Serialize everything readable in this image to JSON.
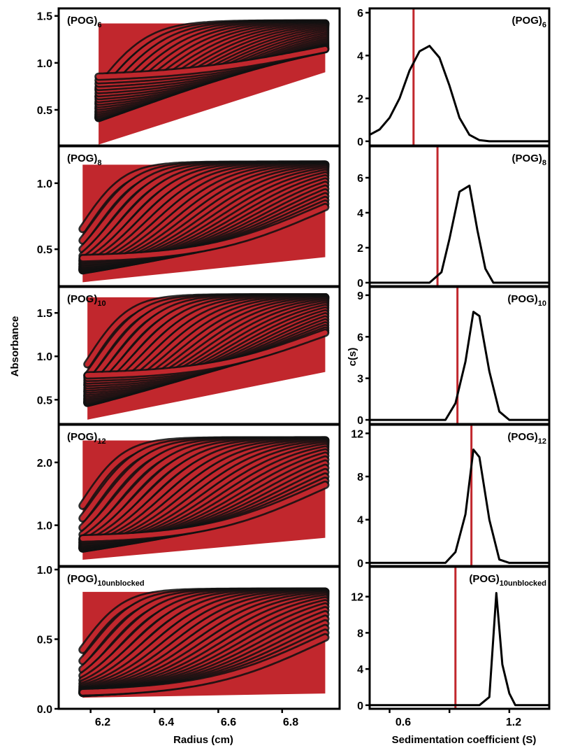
{
  "figure": {
    "left_column": {
      "ylabel": "Absorbance",
      "xlabel": "Radius (cm)",
      "x_ticks": [
        "6.2",
        "6.4",
        "6.6",
        "6.8"
      ]
    },
    "right_column": {
      "ylabel": "c(s)",
      "xlabel": "Sedimentation coefficient (S)",
      "x_ticks": [
        "0.6",
        "1.2"
      ]
    }
  },
  "chart_data": [
    {
      "type": "scatter",
      "panel": "left",
      "row": 0,
      "label": "(POG)",
      "label_sub": "6",
      "xlabel": "Radius (cm)",
      "ylabel": "Absorbance",
      "xlim": [
        6.1,
        6.98
      ],
      "ylim": [
        0.12,
        1.58
      ],
      "yticks": [
        0.5,
        1.0,
        1.5
      ],
      "ytick_labels": [
        "0.5",
        "1.0",
        "1.5"
      ],
      "xticks": [
        6.2,
        6.4,
        6.6,
        6.8
      ],
      "meniscus": 6.225,
      "bottom": 6.935,
      "plateau": 1.42,
      "base": 0.13,
      "base_end": 0.9,
      "n_scans": 28,
      "spread": 0.06,
      "colors": {
        "fit": "#c1272d",
        "data": "#111111"
      }
    },
    {
      "type": "scatter",
      "panel": "left",
      "row": 1,
      "label": "(POG)",
      "label_sub": "8",
      "xlabel": "Radius (cm)",
      "ylabel": "Absorbance",
      "xlim": [
        6.1,
        6.98
      ],
      "ylim": [
        0.22,
        1.28
      ],
      "yticks": [
        0.5,
        1.0
      ],
      "ytick_labels": [
        "0.5",
        "1.0"
      ],
      "xticks": [
        6.2,
        6.4,
        6.6,
        6.8
      ],
      "meniscus": 6.175,
      "bottom": 6.935,
      "plateau": 1.14,
      "base": 0.25,
      "base_end": 0.44,
      "n_scans": 26,
      "spread": 0.045,
      "colors": {
        "fit": "#c1272d",
        "data": "#111111"
      }
    },
    {
      "type": "scatter",
      "panel": "left",
      "row": 2,
      "label": "(POG)",
      "label_sub": "10",
      "xlabel": "Radius (cm)",
      "ylabel": "Absorbance",
      "xlim": [
        6.1,
        6.98
      ],
      "ylim": [
        0.22,
        1.8
      ],
      "yticks": [
        0.5,
        1.0,
        1.5
      ],
      "ytick_labels": [
        "0.5",
        "1.0",
        "1.5"
      ],
      "xticks": [
        6.2,
        6.4,
        6.6,
        6.8
      ],
      "meniscus": 6.19,
      "bottom": 6.935,
      "plateau": 1.68,
      "base": 0.27,
      "base_end": 0.82,
      "n_scans": 26,
      "spread": 0.045,
      "colors": {
        "fit": "#c1272d",
        "data": "#111111"
      }
    },
    {
      "type": "scatter",
      "panel": "left",
      "row": 3,
      "label": "(POG)",
      "label_sub": "12",
      "xlabel": "Radius (cm)",
      "ylabel": "Absorbance",
      "xlim": [
        6.1,
        6.98
      ],
      "ylim": [
        0.35,
        2.6
      ],
      "yticks": [
        1.0,
        2.0
      ],
      "ytick_labels": [
        "1.0",
        "2.0"
      ],
      "xticks": [
        6.2,
        6.4,
        6.6,
        6.8
      ],
      "meniscus": 6.175,
      "bottom": 6.935,
      "plateau": 2.35,
      "base": 0.45,
      "base_end": 0.8,
      "n_scans": 24,
      "spread": 0.045,
      "colors": {
        "fit": "#c1272d",
        "data": "#111111"
      }
    },
    {
      "type": "scatter",
      "panel": "left",
      "row": 4,
      "label": "(POG)",
      "label_sub": "10unblocked",
      "xlabel": "Radius (cm)",
      "ylabel": "Absorbance",
      "xlim": [
        6.1,
        6.98
      ],
      "ylim": [
        0.0,
        1.02
      ],
      "yticks": [
        0.0,
        0.5,
        1.0
      ],
      "ytick_labels": [
        "0.0",
        "0.5",
        "1.0"
      ],
      "xticks": [
        6.2,
        6.4,
        6.6,
        6.8
      ],
      "meniscus": 6.175,
      "bottom": 6.935,
      "plateau": 0.84,
      "base": 0.08,
      "base_end": 0.11,
      "n_scans": 24,
      "spread": 0.045,
      "colors": {
        "fit": "#c1272d",
        "data": "#111111"
      }
    },
    {
      "type": "line",
      "panel": "right",
      "row": 0,
      "label": "(POG)",
      "label_sub": "6",
      "xlabel": "Sedimentation coefficient (S)",
      "ylabel": "c(s)",
      "xlim": [
        0.5,
        1.4
      ],
      "ylim": [
        -0.2,
        6.2
      ],
      "yticks": [
        0,
        2,
        4,
        6
      ],
      "ytick_labels": [
        "0",
        "2",
        "4",
        "6"
      ],
      "xticks": [
        0.6,
        0.9,
        1.2
      ],
      "x": [
        0.5,
        0.55,
        0.6,
        0.65,
        0.7,
        0.75,
        0.8,
        0.85,
        0.9,
        0.95,
        1.0,
        1.05,
        1.1,
        1.2,
        1.4
      ],
      "y": [
        0.3,
        0.55,
        1.1,
        2.0,
        3.3,
        4.2,
        4.45,
        3.9,
        2.6,
        1.1,
        0.3,
        0.05,
        0.0,
        0.0,
        0.0
      ],
      "marker_line": 0.72,
      "colors": {
        "trace": "#000000",
        "marker": "#c1272d"
      }
    },
    {
      "type": "line",
      "panel": "right",
      "row": 1,
      "label": "(POG)",
      "label_sub": "8",
      "xlabel": "Sedimentation coefficient (S)",
      "ylabel": "c(s)",
      "xlim": [
        0.5,
        1.4
      ],
      "ylim": [
        -0.2,
        7.8
      ],
      "yticks": [
        0,
        2,
        4,
        6
      ],
      "ytick_labels": [
        "0",
        "2",
        "4",
        "6"
      ],
      "xticks": [
        0.6,
        0.9,
        1.2
      ],
      "x": [
        0.5,
        0.8,
        0.86,
        0.9,
        0.95,
        1.0,
        1.04,
        1.08,
        1.12,
        1.4
      ],
      "y": [
        0.0,
        0.0,
        0.6,
        2.5,
        5.2,
        5.55,
        3.0,
        0.8,
        0.0,
        0.0
      ],
      "marker_line": 0.84,
      "colors": {
        "trace": "#000000",
        "marker": "#c1272d"
      }
    },
    {
      "type": "line",
      "panel": "right",
      "row": 2,
      "label": "(POG)",
      "label_sub": "10",
      "xlabel": "Sedimentation coefficient (S)",
      "ylabel": "c(s)",
      "xlim": [
        0.5,
        1.4
      ],
      "ylim": [
        -0.3,
        9.6
      ],
      "yticks": [
        0,
        3,
        6,
        9
      ],
      "ytick_labels": [
        "0",
        "3",
        "6",
        "9"
      ],
      "xticks": [
        0.6,
        0.9,
        1.2
      ],
      "x": [
        0.5,
        0.88,
        0.93,
        0.98,
        1.02,
        1.05,
        1.1,
        1.15,
        1.2,
        1.4
      ],
      "y": [
        0.0,
        0.0,
        1.2,
        4.2,
        7.8,
        7.5,
        3.5,
        0.6,
        0.0,
        0.0
      ],
      "marker_line": 0.94,
      "colors": {
        "trace": "#000000",
        "marker": "#c1272d"
      }
    },
    {
      "type": "line",
      "panel": "right",
      "row": 3,
      "label": "(POG)",
      "label_sub": "12",
      "xlabel": "Sedimentation coefficient (S)",
      "ylabel": "c(s)",
      "xlim": [
        0.5,
        1.4
      ],
      "ylim": [
        -0.3,
        12.8
      ],
      "yticks": [
        0,
        4,
        8,
        12
      ],
      "ytick_labels": [
        "0",
        "4",
        "8",
        "12"
      ],
      "xticks": [
        0.6,
        0.9,
        1.2
      ],
      "x": [
        0.5,
        0.88,
        0.93,
        0.98,
        1.02,
        1.05,
        1.1,
        1.15,
        1.2,
        1.4
      ],
      "y": [
        0.0,
        0.0,
        1.0,
        4.5,
        10.5,
        9.8,
        4.0,
        0.3,
        0.0,
        0.0
      ],
      "marker_line": 1.01,
      "colors": {
        "trace": "#000000",
        "marker": "#c1272d"
      }
    },
    {
      "type": "line",
      "panel": "right",
      "row": 4,
      "label": "(POG)",
      "label_sub": "10unblocked",
      "xlabel": "Sedimentation coefficient (S)",
      "ylabel": "c(s)",
      "xlim": [
        0.5,
        1.4
      ],
      "ylim": [
        -0.4,
        15.3
      ],
      "yticks": [
        0,
        4,
        8,
        12
      ],
      "ytick_labels": [
        "0",
        "4",
        "8",
        "12"
      ],
      "xticks": [
        0.6,
        0.9,
        1.2
      ],
      "x": [
        0.5,
        1.05,
        1.1,
        1.135,
        1.165,
        1.2,
        1.23,
        1.4
      ],
      "y": [
        0.0,
        0.0,
        0.9,
        12.4,
        4.5,
        1.3,
        0.0,
        0.0
      ],
      "marker_line": 0.93,
      "colors": {
        "trace": "#000000",
        "marker": "#c1272d"
      }
    }
  ]
}
